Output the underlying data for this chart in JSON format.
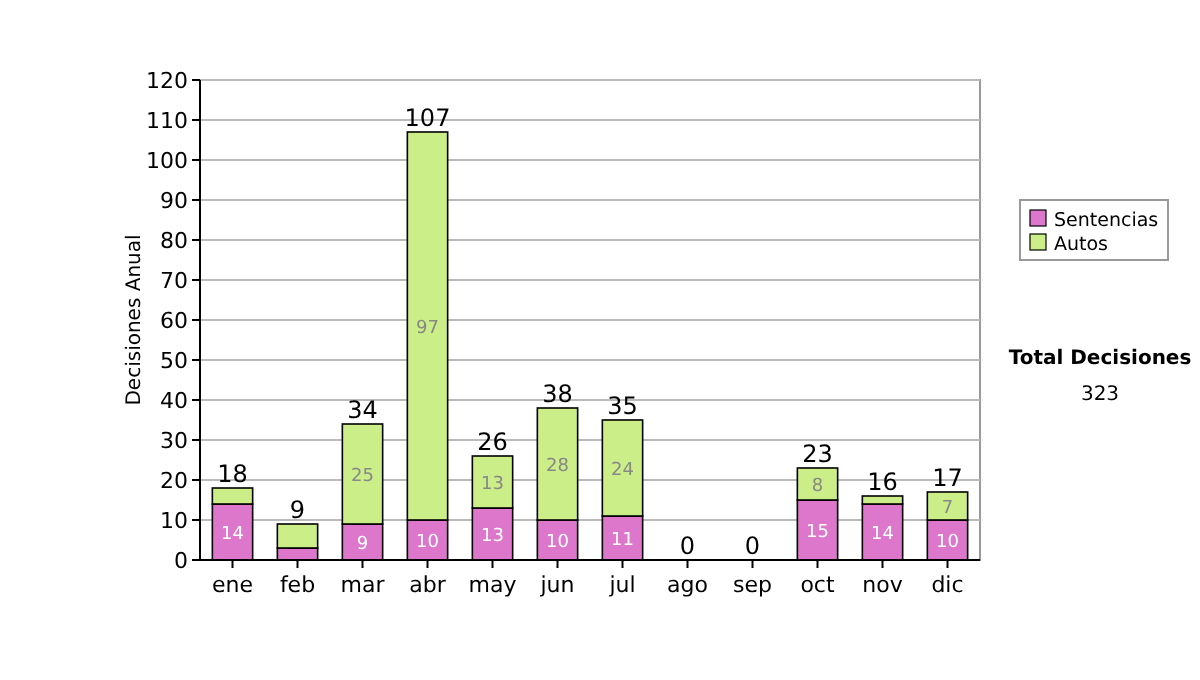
{
  "chart_data": {
    "type": "bar",
    "stacked": true,
    "ylabel": "Decisiones Anual",
    "categories": [
      "ene",
      "feb",
      "mar",
      "abr",
      "may",
      "jun",
      "jul",
      "ago",
      "sep",
      "oct",
      "nov",
      "dic"
    ],
    "series": [
      {
        "name": "Sentencias",
        "color": "#dd77cc",
        "values": [
          14,
          3,
          9,
          10,
          13,
          10,
          11,
          0,
          0,
          15,
          14,
          10
        ],
        "value_labels": [
          "14",
          null,
          "9",
          "10",
          "13",
          "10",
          "11",
          null,
          null,
          "15",
          "14",
          "10"
        ]
      },
      {
        "name": "Autos",
        "color": "#ccee88",
        "values": [
          4,
          6,
          25,
          97,
          13,
          28,
          24,
          0,
          0,
          8,
          2,
          7
        ],
        "value_labels": [
          null,
          null,
          "25",
          "97",
          "13",
          "28",
          "24",
          null,
          null,
          "8",
          null,
          "7"
        ]
      }
    ],
    "totals": [
      "18",
      "9",
      "34",
      "107",
      "26",
      "38",
      "35",
      "0",
      "0",
      "23",
      "16",
      "17"
    ],
    "ylim": [
      0,
      120
    ],
    "yticks": [
      0,
      10,
      20,
      30,
      40,
      50,
      60,
      70,
      80,
      90,
      100,
      110,
      120
    ],
    "grid": "y",
    "legend": "right",
    "annotations": [
      "Total Decisiones",
      "323"
    ]
  }
}
